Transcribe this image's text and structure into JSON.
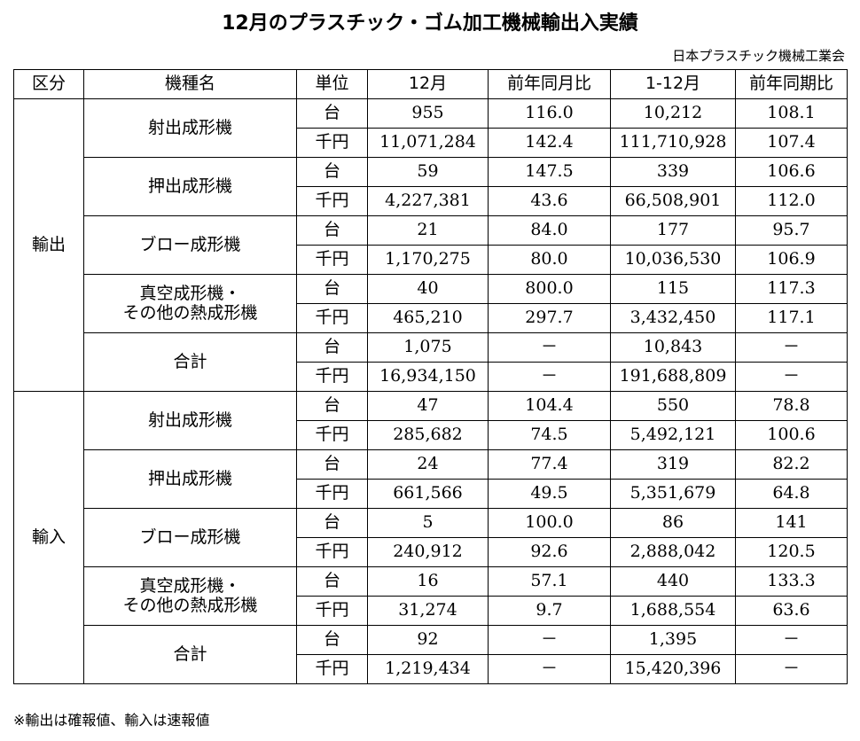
{
  "title": "12月のプラスチック・ゴム加工機械輸出入実績",
  "source": "日本プラスチック機械工業会",
  "headers": [
    "区分",
    "機種名",
    "単位",
    "12月",
    "前年同月比",
    "1-12月",
    "前年同期比"
  ],
  "sections": [
    {
      "category": "輸出",
      "machines": [
        {
          "name": "射出成形機",
          "rows": [
            {
              "unit": "台",
              "month": "955",
              "month_yoy": "116.0",
              "ytd": "10,212",
              "ytd_yoy": "108.1"
            },
            {
              "unit": "千円",
              "month": "11,071,284",
              "month_yoy": "142.4",
              "ytd": "111,710,928",
              "ytd_yoy": "107.4"
            }
          ]
        },
        {
          "name": "押出成形機",
          "rows": [
            {
              "unit": "台",
              "month": "59",
              "month_yoy": "147.5",
              "ytd": "339",
              "ytd_yoy": "106.6"
            },
            {
              "unit": "千円",
              "month": "4,227,381",
              "month_yoy": "43.6",
              "ytd": "66,508,901",
              "ytd_yoy": "112.0"
            }
          ]
        },
        {
          "name": "ブロー成形機",
          "rows": [
            {
              "unit": "台",
              "month": "21",
              "month_yoy": "84.0",
              "ytd": "177",
              "ytd_yoy": "95.7"
            },
            {
              "unit": "千円",
              "month": "1,170,275",
              "month_yoy": "80.0",
              "ytd": "10,036,530",
              "ytd_yoy": "106.9"
            }
          ]
        },
        {
          "name": "真空成形機・\nその他の熱成形機",
          "rows": [
            {
              "unit": "台",
              "month": "40",
              "month_yoy": "800.0",
              "ytd": "115",
              "ytd_yoy": "117.3"
            },
            {
              "unit": "千円",
              "month": "465,210",
              "month_yoy": "297.7",
              "ytd": "3,432,450",
              "ytd_yoy": "117.1"
            }
          ]
        },
        {
          "name": "合計",
          "rows": [
            {
              "unit": "台",
              "month": "1,075",
              "month_yoy": "－",
              "ytd": "10,843",
              "ytd_yoy": "－"
            },
            {
              "unit": "千円",
              "month": "16,934,150",
              "month_yoy": "－",
              "ytd": "191,688,809",
              "ytd_yoy": "－"
            }
          ]
        }
      ]
    },
    {
      "category": "輸入",
      "machines": [
        {
          "name": "射出成形機",
          "rows": [
            {
              "unit": "台",
              "month": "47",
              "month_yoy": "104.4",
              "ytd": "550",
              "ytd_yoy": "78.8"
            },
            {
              "unit": "千円",
              "month": "285,682",
              "month_yoy": "74.5",
              "ytd": "5,492,121",
              "ytd_yoy": "100.6"
            }
          ]
        },
        {
          "name": "押出成形機",
          "rows": [
            {
              "unit": "台",
              "month": "24",
              "month_yoy": "77.4",
              "ytd": "319",
              "ytd_yoy": "82.2"
            },
            {
              "unit": "千円",
              "month": "661,566",
              "month_yoy": "49.5",
              "ytd": "5,351,679",
              "ytd_yoy": "64.8"
            }
          ]
        },
        {
          "name": "ブロー成形機",
          "rows": [
            {
              "unit": "台",
              "month": "5",
              "month_yoy": "100.0",
              "ytd": "86",
              "ytd_yoy": "141"
            },
            {
              "unit": "千円",
              "month": "240,912",
              "month_yoy": "92.6",
              "ytd": "2,888,042",
              "ytd_yoy": "120.5"
            }
          ]
        },
        {
          "name": "真空成形機・\nその他の熱成形機",
          "rows": [
            {
              "unit": "台",
              "month": "16",
              "month_yoy": "57.1",
              "ytd": "440",
              "ytd_yoy": "133.3"
            },
            {
              "unit": "千円",
              "month": "31,274",
              "month_yoy": "9.7",
              "ytd": "1,688,554",
              "ytd_yoy": "63.6"
            }
          ]
        },
        {
          "name": "合計",
          "rows": [
            {
              "unit": "台",
              "month": "92",
              "month_yoy": "－",
              "ytd": "1,395",
              "ytd_yoy": "－"
            },
            {
              "unit": "千円",
              "month": "1,219,434",
              "month_yoy": "－",
              "ytd": "15,420,396",
              "ytd_yoy": "－"
            }
          ]
        }
      ]
    }
  ],
  "note": "※輸出は確報値、輸入は速報値"
}
